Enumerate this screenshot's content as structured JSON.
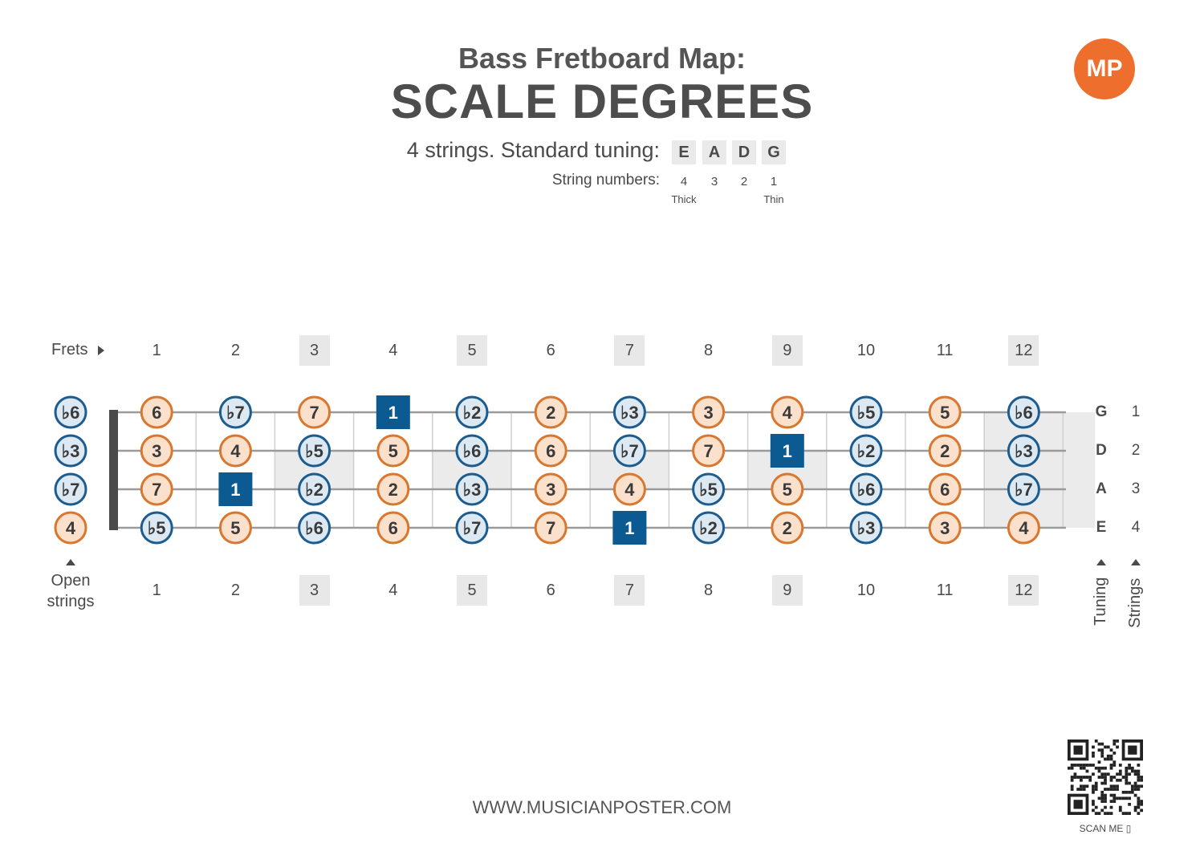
{
  "header": {
    "subtitle": "Bass Fretboard Map:",
    "title": "SCALE DEGREES",
    "logo_text": "MP"
  },
  "tuning": {
    "label": "4 strings. Standard tuning:",
    "notes": [
      "E",
      "A",
      "D",
      "G"
    ],
    "string_numbers_label": "String numbers:",
    "string_numbers": [
      "4",
      "3",
      "2",
      "1"
    ],
    "thick_label": "Thick",
    "thin_label": "Thin"
  },
  "fretboard": {
    "frets_label": "Frets",
    "fret_numbers": [
      "1",
      "2",
      "3",
      "4",
      "5",
      "6",
      "7",
      "8",
      "9",
      "10",
      "11",
      "12"
    ],
    "marked_frets": [
      3,
      5,
      7,
      9,
      12
    ],
    "open_strings_label_line1": "Open",
    "open_strings_label_line2": "strings",
    "tuning_axis_label": "Tuning",
    "strings_axis_label": "Strings",
    "strings": [
      {
        "tuning": "G",
        "number": "1",
        "open": "b6",
        "frets": [
          "6",
          "b7",
          "7",
          "1",
          "b2",
          "2",
          "b3",
          "3",
          "4",
          "b5",
          "5",
          "b6"
        ]
      },
      {
        "tuning": "D",
        "number": "2",
        "open": "b3",
        "frets": [
          "3",
          "4",
          "b5",
          "5",
          "b6",
          "6",
          "b7",
          "7",
          "1",
          "b2",
          "2",
          "b3"
        ]
      },
      {
        "tuning": "A",
        "number": "3",
        "open": "b7",
        "frets": [
          "7",
          "1",
          "b2",
          "2",
          "b3",
          "3",
          "4",
          "b5",
          "5",
          "b6",
          "6",
          "b7"
        ]
      },
      {
        "tuning": "E",
        "number": "4",
        "open": "4",
        "frets": [
          "b5",
          "5",
          "b6",
          "6",
          "b7",
          "7",
          "1",
          "b2",
          "2",
          "b3",
          "3",
          "4"
        ]
      }
    ]
  },
  "colors": {
    "natural_fill": "#fbe0cc",
    "natural_stroke": "#d9772f",
    "flat_fill": "#dce8f2",
    "flat_stroke": "#1d5c8e",
    "root_fill": "#0b5a91",
    "marker_shade": "#ebebeb"
  },
  "footer": {
    "url": "WWW.MUSICIANPOSTER.COM",
    "scan_label": "SCAN ME"
  }
}
